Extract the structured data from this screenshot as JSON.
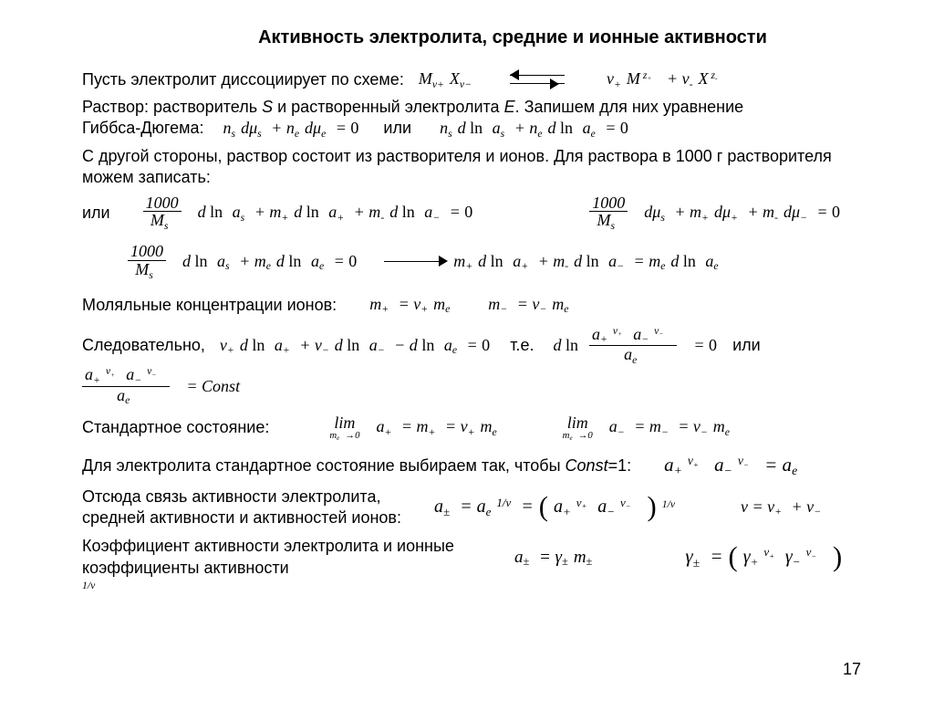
{
  "title": "Активность электролита, средние и ионные активности",
  "t1": "Пусть электролит диссоциирует по схеме:",
  "eq1a": "M<span class='sub'>ν+</span>X<span class='sub'>ν−</span>",
  "eq1b": "ν<span class='sub'>+</span>M<span class='sup'>&nbsp;z<span class='sub'>+</span></span> + ν<span class='sub'>-</span>X<span class='sup'>&nbsp;z<span class='sub'>-</span></span>",
  "t2": "Раствор: растворитель <i>S</i> и растворенный электролита <i>E</i>. Запишем для них уравнение<br>Гиббса-Дюгема:",
  "eq2": "n<span class='sub'>s</span>dμ<span class='sub'>s</span> + n<span class='sub'>e</span>dμ<span class='sub'>e</span> = <span class='r'>0</span>",
  "or": "или",
  "eq3": "n<span class='sub'>s</span>d <span class='r'>ln</span> a<span class='sub'>s</span> + n<span class='sub'>e</span>d <span class='r'>ln</span> a<span class='sub'>e</span> = <span class='r'>0</span>",
  "t3": "С другой стороны, раствор состоит из растворителя и ионов. Для раствора в 1000 г растворителя можем записать:",
  "frac1_n": "1000",
  "frac1_d": "M<span class='sub'>s</span>",
  "eq4": "dμ<span class='sub'>s</span> + m<span class='sub'>+</span>dμ<span class='sub'>+</span> + m<span class='sub'>-</span>dμ<span class='sub'>−</span> = <span class='r'>0</span>",
  "eq5": "d <span class='r'>ln</span> a<span class='sub'>s</span> + m<span class='sub'>+</span>d <span class='r'>ln</span> a<span class='sub'>+</span> + m<span class='sub'>-</span>d <span class='r'>ln</span> a<span class='sub'>−</span> = <span class='r'>0</span>",
  "eq6": "d <span class='r'>ln</span> a<span class='sub'>s</span> + m<span class='sub'>e</span>d <span class='r'>ln</span> a<span class='sub'>e</span> = <span class='r'>0</span>",
  "eq7": "m<span class='sub'>+</span>d <span class='r'>ln</span> a<span class='sub'>+</span> + m<span class='sub'>-</span>d <span class='r'>ln</span> a<span class='sub'>−</span> = m<span class='sub'>e</span>d <span class='r'>ln</span> a<span class='sub'>e</span>",
  "t4": "Моляльные концентрации ионов:",
  "eq8": "m<span class='sub'>+</span> = ν<span class='sub'>+</span>m<span class='sub'>e</span>",
  "eq9": "m<span class='sub'>−</span> = ν<span class='sub'>−</span>m<span class='sub'>e</span>",
  "t5": "Следовательно,",
  "eq10": "ν<span class='sub'>+</span>d <span class='r'>ln</span> a<span class='sub'>+</span> + ν<span class='sub'>−</span>d <span class='r'>ln</span> a<span class='sub'>−</span> − d <span class='r'>ln</span> a<span class='sub'>e</span> = <span class='r'>0</span>",
  "te": "т.е.",
  "frac2_n": "a<span class='sub'>+</span><span class='sup'>ν<span class='sub'>+</span></span>a<span class='sub'>−</span><span class='sup'>ν<span class='sub'>−</span></span>",
  "frac2_d": "a<span class='sub'>e</span>",
  "eq11_pre": "d <span class='r'>ln</span>",
  "eq11_post": "= <span class='r'>0</span>",
  "eq12_post": "= Const",
  "t6": "Стандартное состояние:",
  "lim": "lim",
  "limb": "m<span class='sub'>e</span>→0",
  "eq13": "a<span class='sub'>+</span> = m<span class='sub'>+</span> = ν<span class='sub'>+</span>m<span class='sub'>e</span>",
  "eq14": "a<span class='sub'>−</span> = m<span class='sub'>−</span> = ν<span class='sub'>−</span>m<span class='sub'>e</span>",
  "t7": "Для электролита стандартное состояние выбираем так, чтобы <i>Const</i>=1:",
  "eq15": "a<span class='sub'>+</span><span class='sup'>ν<span class='sub'>+</span></span> a<span class='sub'>−</span><span class='sup'>ν<span class='sub'>−</span></span> = a<span class='sub'>e</span>",
  "t8": "Отсюда связь активности электролита,<br>средней активности и активностей ионов:",
  "eq16": "a<span class='sub'>±</span> = a<span class='sub'>e</span><span class='sup'>1/ν</span> = ",
  "eq16b": "a<span class='sub'>+</span><span class='sup'>ν<span class='sub'>+</span></span>a<span class='sub'>−</span><span class='sup'>ν<span class='sub'>−</span></span>",
  "eq16c": "<span class='sup'>1/ν</span>",
  "eq17": "ν = ν<span class='sub'>+</span> + ν<span class='sub'>−</span>",
  "t9": "Коэффициент активности электролита и ионные<br>коэффициенты активности",
  "eq18": "a<span class='sub'>±</span> = γ<span class='sub'>±</span>m<span class='sub'>±</span>",
  "eq19": "γ<span class='sub'>±</span> = ",
  "eq19b": "γ<span class='sub'>+</span><span class='sup'>ν<span class='sub'>+</span></span>γ<span class='sub'>−</span><span class='sup'>ν<span class='sub'>−</span></span>",
  "pagenum": "17"
}
